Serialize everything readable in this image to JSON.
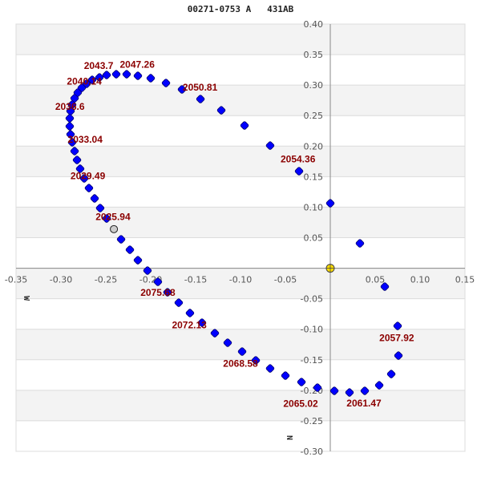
{
  "chart_data": {
    "type": "scatter",
    "title": "00271-0753 A   431AB",
    "xlabel": "W",
    "ylabel": "N",
    "xlim": [
      -0.35,
      0.15
    ],
    "ylim": [
      -0.3,
      0.4
    ],
    "xticks": [
      "-0.35",
      "-0.30",
      "-0.25",
      "-0.20",
      "-0.15",
      "-0.10",
      "-0.05",
      "0.05",
      "0.10",
      "0.15"
    ],
    "xtick_values": [
      -0.35,
      -0.3,
      -0.25,
      -0.2,
      -0.15,
      -0.1,
      -0.05,
      0.05,
      0.1,
      0.15
    ],
    "yticks": [
      "0.40",
      "0.35",
      "0.30",
      "0.25",
      "0.20",
      "0.15",
      "0.10",
      "0.05",
      "-0.05",
      "-0.10",
      "-0.15",
      "-0.20",
      "-0.25",
      "-0.30"
    ],
    "ytick_values": [
      0.4,
      0.35,
      0.3,
      0.25,
      0.2,
      0.15,
      0.1,
      0.05,
      -0.05,
      -0.1,
      -0.15,
      -0.2,
      -0.25,
      -0.3
    ],
    "grid": true,
    "banded_background": true,
    "colors": {
      "orbit_points": "#0000ff",
      "primary_star": "#ffdd00",
      "current_position": "#cccccc",
      "labels": "#8b0000",
      "band": "#f3f3f3"
    },
    "primary": {
      "x": 0.0,
      "y": 0.0
    },
    "current_position": {
      "x": -0.241,
      "y": 0.064
    },
    "orbit_points": [
      [
        -0.0955,
        0.2338
      ],
      [
        -0.1214,
        0.2587
      ],
      [
        -0.1446,
        0.2771
      ],
      [
        -0.1652,
        0.2929
      ],
      [
        -0.183,
        0.3034
      ],
      [
        -0.2,
        0.3113
      ],
      [
        -0.2143,
        0.3152
      ],
      [
        -0.2268,
        0.3178
      ],
      [
        -0.2384,
        0.3178
      ],
      [
        -0.2491,
        0.3165
      ],
      [
        -0.2571,
        0.3126
      ],
      [
        -0.2652,
        0.3086
      ],
      [
        -0.2714,
        0.3021
      ],
      [
        -0.2768,
        0.2955
      ],
      [
        -0.2813,
        0.2876
      ],
      [
        -0.2848,
        0.2784
      ],
      [
        -0.2875,
        0.2679
      ],
      [
        -0.2893,
        0.2574
      ],
      [
        -0.2902,
        0.2456
      ],
      [
        -0.2902,
        0.2325
      ],
      [
        -0.2893,
        0.2193
      ],
      [
        -0.2875,
        0.2062
      ],
      [
        -0.2848,
        0.1918
      ],
      [
        -0.2821,
        0.1773
      ],
      [
        -0.2786,
        0.1629
      ],
      [
        -0.2741,
        0.1471
      ],
      [
        -0.2688,
        0.1313
      ],
      [
        -0.2625,
        0.1143
      ],
      [
        -0.2563,
        0.0985
      ],
      [
        -0.2491,
        0.0814
      ],
      [
        -0.233,
        0.0473
      ],
      [
        -0.2232,
        0.0302
      ],
      [
        -0.2143,
        0.0131
      ],
      [
        -0.2036,
        -0.0039
      ],
      [
        -0.192,
        -0.0223
      ],
      [
        -0.1813,
        -0.0394
      ],
      [
        -0.1688,
        -0.0565
      ],
      [
        -0.1563,
        -0.0735
      ],
      [
        -0.1429,
        -0.0893
      ],
      [
        -0.1286,
        -0.1064
      ],
      [
        -0.1143,
        -0.1221
      ],
      [
        -0.0982,
        -0.1366
      ],
      [
        -0.083,
        -0.151
      ],
      [
        -0.067,
        -0.1642
      ],
      [
        -0.05,
        -0.176
      ],
      [
        -0.0321,
        -0.1865
      ],
      [
        -0.0143,
        -0.1957
      ],
      [
        0.0045,
        -0.2009
      ],
      [
        0.0214,
        -0.2036
      ],
      [
        0.0384,
        -0.2009
      ],
      [
        0.0545,
        -0.1918
      ],
      [
        0.0679,
        -0.1734
      ],
      [
        0.0759,
        -0.1432
      ],
      [
        0.075,
        -0.0946
      ],
      [
        0.0607,
        -0.0302
      ],
      [
        0.033,
        0.0407
      ],
      [
        0.0,
        0.1064
      ],
      [
        -0.0348,
        0.1589
      ],
      [
        -0.067,
        0.2009
      ]
    ],
    "annotations": [
      {
        "text": "2043.7",
        "x": -0.258,
        "y": 0.332
      },
      {
        "text": "2047.26",
        "x": -0.215,
        "y": 0.334
      },
      {
        "text": "2040.14",
        "x": -0.274,
        "y": 0.306
      },
      {
        "text": "2050.81",
        "x": -0.145,
        "y": 0.296
      },
      {
        "text": "2036.6",
        "x": -0.29,
        "y": 0.265
      },
      {
        "text": "2033.04",
        "x": -0.273,
        "y": 0.211
      },
      {
        "text": "2029.49",
        "x": -0.27,
        "y": 0.151
      },
      {
        "text": "2054.36",
        "x": -0.036,
        "y": 0.179
      },
      {
        "text": "2025.94",
        "x": -0.242,
        "y": 0.084
      },
      {
        "text": "2075.68",
        "x": -0.192,
        "y": -0.024
      },
      {
        "text": "2072.13",
        "x": -0.157,
        "y": -0.093
      },
      {
        "text": "2068.58",
        "x": -0.1,
        "y": -0.156
      },
      {
        "text": "2065.02",
        "x": -0.033,
        "y": -0.206
      },
      {
        "text": "2061.47",
        "x": 0.0375,
        "y": -0.221
      },
      {
        "text": "2057.92",
        "x": 0.074,
        "y": -0.114
      }
    ]
  }
}
